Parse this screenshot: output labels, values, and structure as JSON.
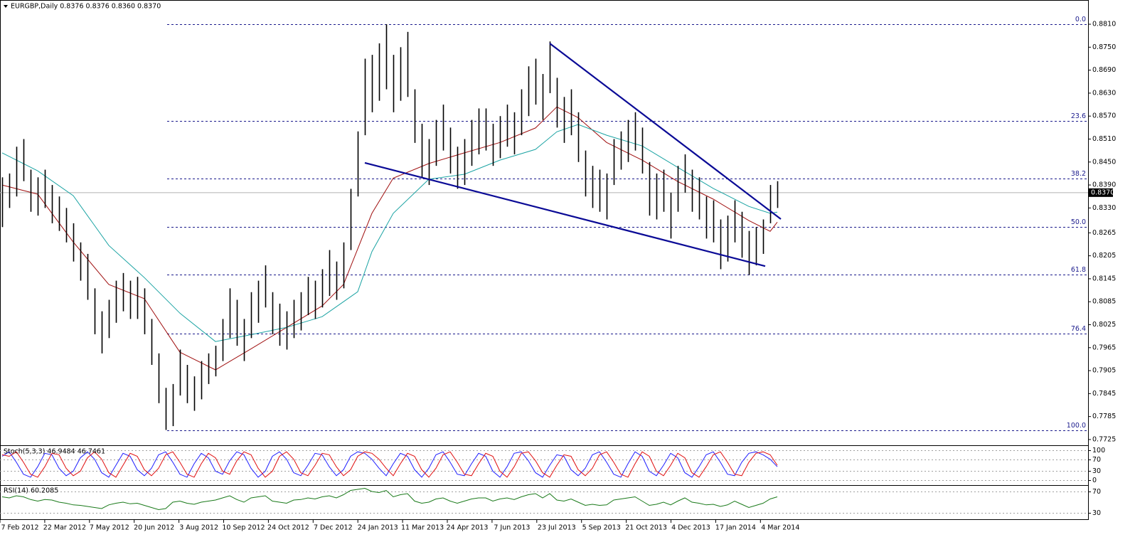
{
  "chart_data": {
    "type": "ohlc",
    "title": "EURGBP,Daily  0.8376 0.8376 0.8360 0.8370",
    "color": "#000000",
    "high": [
      0.841,
      0.842,
      0.849,
      0.851,
      0.843,
      0.841,
      0.843,
      0.839,
      0.836,
      0.833,
      0.829,
      0.824,
      0.821,
      0.812,
      0.806,
      0.809,
      0.814,
      0.816,
      0.814,
      0.815,
      0.812,
      0.804,
      0.795,
      0.786,
      0.787,
      0.796,
      0.792,
      0.789,
      0.793,
      0.795,
      0.797,
      0.804,
      0.812,
      0.809,
      0.804,
      0.811,
      0.814,
      0.818,
      0.811,
      0.808,
      0.806,
      0.809,
      0.811,
      0.815,
      0.814,
      0.817,
      0.822,
      0.819,
      0.824,
      0.838,
      0.853,
      0.872,
      0.873,
      0.876,
      0.881,
      0.873,
      0.875,
      0.879,
      0.864,
      0.855,
      0.851,
      0.856,
      0.86,
      0.854,
      0.849,
      0.851,
      0.856,
      0.859,
      0.859,
      0.855,
      0.857,
      0.86,
      0.858,
      0.864,
      0.87,
      0.872,
      0.868,
      0.8765,
      0.867,
      0.862,
      0.864,
      0.858,
      0.848,
      0.844,
      0.843,
      0.842,
      0.851,
      0.853,
      0.856,
      0.858,
      0.854,
      0.845,
      0.842,
      0.843,
      0.837,
      0.844,
      0.847,
      0.843,
      0.841,
      0.836,
      0.835,
      0.83,
      0.831,
      0.835,
      0.832,
      0.827,
      0.828,
      0.83,
      0.839,
      0.84
    ],
    "low": [
      0.828,
      0.833,
      0.836,
      0.84,
      0.832,
      0.831,
      0.833,
      0.829,
      0.827,
      0.824,
      0.819,
      0.814,
      0.809,
      0.8,
      0.795,
      0.799,
      0.803,
      0.806,
      0.804,
      0.804,
      0.8,
      0.792,
      0.782,
      0.775,
      0.776,
      0.784,
      0.782,
      0.78,
      0.783,
      0.787,
      0.789,
      0.793,
      0.799,
      0.797,
      0.793,
      0.799,
      0.803,
      0.807,
      0.8,
      0.797,
      0.796,
      0.799,
      0.801,
      0.805,
      0.804,
      0.807,
      0.81,
      0.809,
      0.812,
      0.822,
      0.836,
      0.852,
      0.858,
      0.861,
      0.864,
      0.858,
      0.861,
      0.862,
      0.85,
      0.841,
      0.839,
      0.844,
      0.848,
      0.842,
      0.838,
      0.839,
      0.844,
      0.847,
      0.848,
      0.844,
      0.846,
      0.849,
      0.847,
      0.852,
      0.857,
      0.86,
      0.856,
      0.863,
      0.854,
      0.85,
      0.852,
      0.845,
      0.836,
      0.833,
      0.832,
      0.83,
      0.839,
      0.843,
      0.845,
      0.848,
      0.842,
      0.831,
      0.83,
      0.832,
      0.825,
      0.832,
      0.837,
      0.832,
      0.83,
      0.825,
      0.824,
      0.817,
      0.819,
      0.824,
      0.82,
      0.8155,
      0.818,
      0.821,
      0.829,
      0.833
    ],
    "ylim": [
      0.771,
      0.8864
    ],
    "yticks": [
      {
        "value": 0.881,
        "label": "0.8810"
      },
      {
        "value": 0.875,
        "label": "0.8750"
      },
      {
        "value": 0.869,
        "label": "0.8690"
      },
      {
        "value": 0.863,
        "label": "0.8630"
      },
      {
        "value": 0.857,
        "label": "0.8570"
      },
      {
        "value": 0.851,
        "label": "0.8510"
      },
      {
        "value": 0.845,
        "label": "0.8450"
      },
      {
        "value": 0.839,
        "label": "0.8390"
      },
      {
        "value": 0.833,
        "label": "0.8330"
      },
      {
        "value": 0.8265,
        "label": "0.8265"
      },
      {
        "value": 0.8205,
        "label": "0.8205"
      },
      {
        "value": 0.8145,
        "label": "0.8145"
      },
      {
        "value": 0.8085,
        "label": "0.8085"
      },
      {
        "value": 0.8025,
        "label": "0.8025"
      },
      {
        "value": 0.7965,
        "label": "0.7965"
      },
      {
        "value": 0.7905,
        "label": "0.7905"
      },
      {
        "value": 0.7845,
        "label": "0.7845"
      },
      {
        "value": 0.7785,
        "label": "0.7785"
      },
      {
        "value": 0.7725,
        "label": "0.7725"
      }
    ],
    "current_price": {
      "value": 0.837,
      "label": "0.8370"
    },
    "fibonacci": [
      {
        "label": "0.0",
        "price": 0.881
      },
      {
        "label": "23.6",
        "price": 0.8557
      },
      {
        "label": "38.2",
        "price": 0.8407
      },
      {
        "label": "50.0",
        "price": 0.828
      },
      {
        "label": "61.8",
        "price": 0.8156
      },
      {
        "label": "76.4",
        "price": 0.8001
      },
      {
        "label": "100.0",
        "price": 0.7749
      }
    ],
    "fib_color": "#1a1a8c",
    "moving_averages": [
      {
        "color": "#a01010",
        "x": [
          0,
          5,
          10,
          15,
          20,
          25,
          30,
          35,
          40,
          45,
          48,
          50,
          52,
          55,
          60,
          65,
          70,
          75,
          78,
          81,
          85,
          90,
          95,
          100,
          105,
          108,
          109
        ],
        "values": [
          0.839,
          0.8366,
          0.8241,
          0.813,
          0.8093,
          0.7953,
          0.7907,
          0.7962,
          0.8018,
          0.8074,
          0.813,
          0.8223,
          0.8316,
          0.8408,
          0.8446,
          0.8474,
          0.8501,
          0.8539,
          0.8594,
          0.8566,
          0.8501,
          0.8455,
          0.8399,
          0.8353,
          0.8297,
          0.8269,
          0.8293
        ]
      },
      {
        "color": "#1aa3a3",
        "x": [
          0,
          5,
          10,
          15,
          20,
          25,
          30,
          35,
          40,
          45,
          48,
          50,
          52,
          55,
          60,
          65,
          70,
          75,
          78,
          81,
          85,
          90,
          95,
          100,
          105,
          108,
          109
        ],
        "values": [
          0.8474,
          0.8427,
          0.8362,
          0.8232,
          0.8148,
          0.8055,
          0.7981,
          0.7999,
          0.8018,
          0.8046,
          0.8085,
          0.8111,
          0.8216,
          0.8316,
          0.8405,
          0.8418,
          0.8455,
          0.8483,
          0.8529,
          0.8548,
          0.852,
          0.8492,
          0.8436,
          0.8381,
          0.8334,
          0.8316,
          0.8319
        ]
      }
    ],
    "trendlines": [
      {
        "color": "#0a0a96",
        "x": [
          77,
          109.5
        ],
        "values": [
          0.876,
          0.8301
        ]
      },
      {
        "color": "#0a0a96",
        "x": [
          51,
          107.3
        ],
        "values": [
          0.8448,
          0.8178
        ]
      }
    ],
    "x_labels": [
      "7 Feb 2012",
      "22 Mar 2012",
      "7 May 2012",
      "20 Jun 2012",
      "3 Aug 2012",
      "10 Sep 2012",
      "24 Oct 2012",
      "7 Dec 2012",
      "24 Jan 2013",
      "11 Mar 2013",
      "24 Apr 2013",
      "7 Jun 2013",
      "23 Jul 2013",
      "5 Sep 2013",
      "21 Oct 2013",
      "4 Dec 2013",
      "17 Jan 2014",
      "4 Mar 2014"
    ],
    "indicators": [
      {
        "title": "Stoch(5,3,3) 46.9484 46.7461",
        "ylim": [
          -14,
          112
        ],
        "yticks": [
          100,
          70,
          30,
          0
        ],
        "series": [
          {
            "color": "#2020ff",
            "values": [
              80,
              95,
              60,
              20,
              10,
              45,
              90,
              85,
              40,
              15,
              30,
              75,
              95,
              70,
              25,
              10,
              50,
              90,
              80,
              35,
              15,
              40,
              85,
              95,
              60,
              20,
              10,
              55,
              90,
              75,
              30,
              20,
              65,
              95,
              85,
              40,
              10,
              30,
              80,
              95,
              70,
              25,
              15,
              50,
              90,
              85,
              45,
              15,
              35,
              80,
              95,
              90,
              70,
              40,
              15,
              55,
              90,
              80,
              35,
              10,
              40,
              85,
              95,
              60,
              20,
              15,
              55,
              90,
              80,
              30,
              10,
              45,
              90,
              95,
              65,
              25,
              10,
              50,
              85,
              80,
              35,
              15,
              40,
              85,
              95,
              60,
              20,
              10,
              55,
              95,
              80,
              30,
              15,
              50,
              90,
              75,
              25,
              10,
              45,
              85,
              95,
              60,
              20,
              15,
              60,
              90,
              95,
              85,
              70,
              45
            ]
          },
          {
            "color": "#e01010",
            "values": [
              85,
              80,
              95,
              60,
              20,
              10,
              45,
              90,
              85,
              40,
              15,
              30,
              75,
              95,
              70,
              25,
              10,
              50,
              90,
              80,
              35,
              15,
              40,
              85,
              95,
              60,
              20,
              10,
              55,
              90,
              75,
              30,
              20,
              65,
              95,
              85,
              40,
              10,
              30,
              80,
              95,
              70,
              25,
              15,
              50,
              90,
              85,
              45,
              15,
              35,
              80,
              95,
              90,
              70,
              40,
              15,
              55,
              90,
              80,
              35,
              10,
              40,
              85,
              95,
              60,
              20,
              15,
              55,
              90,
              80,
              30,
              10,
              45,
              90,
              95,
              65,
              25,
              10,
              50,
              85,
              80,
              35,
              15,
              40,
              85,
              95,
              60,
              20,
              10,
              55,
              95,
              80,
              30,
              15,
              50,
              90,
              75,
              25,
              10,
              45,
              85,
              95,
              60,
              20,
              15,
              60,
              90,
              95,
              85,
              50
            ]
          }
        ]
      },
      {
        "title": "RSI(14) 60.2085",
        "ylim": [
          16.7,
          80.7
        ],
        "yticks": [
          70,
          30
        ],
        "series": [
          {
            "color": "#1a7a1a",
            "values": [
              60,
              58,
              62,
              60,
              55,
              52,
              55,
              54,
              50,
              48,
              45,
              44,
              42,
              40,
              38,
              45,
              48,
              50,
              47,
              48,
              44,
              40,
              36,
              38,
              50,
              52,
              48,
              46,
              50,
              52,
              54,
              58,
              62,
              55,
              50,
              58,
              60,
              62,
              52,
              50,
              48,
              54,
              55,
              58,
              56,
              60,
              62,
              58,
              64,
              72,
              74,
              76,
              70,
              68,
              72,
              60,
              64,
              66,
              52,
              48,
              50,
              56,
              58,
              52,
              48,
              52,
              56,
              58,
              58,
              52,
              56,
              58,
              55,
              60,
              64,
              66,
              58,
              66,
              54,
              52,
              56,
              50,
              44,
              46,
              44,
              45,
              54,
              56,
              58,
              60,
              52,
              44,
              46,
              50,
              45,
              52,
              58,
              50,
              48,
              45,
              46,
              42,
              45,
              52,
              46,
              40,
              44,
              48,
              56,
              60
            ]
          }
        ]
      }
    ]
  }
}
